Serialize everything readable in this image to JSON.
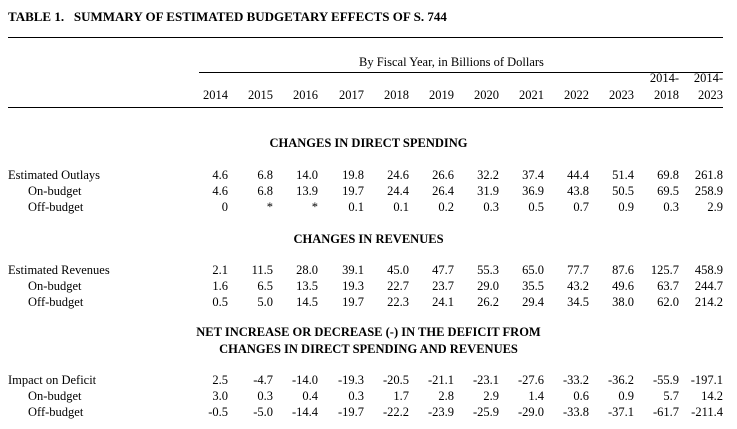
{
  "title": "TABLE 1.   SUMMARY OF ESTIMATED BUDGETARY EFFECTS OF S. 744",
  "subtitle": "By Fiscal Year, in Billions of Dollars",
  "columns": [
    {
      "top": "",
      "bottom": "2014"
    },
    {
      "top": "",
      "bottom": "2015"
    },
    {
      "top": "",
      "bottom": "2016"
    },
    {
      "top": "",
      "bottom": "2017"
    },
    {
      "top": "",
      "bottom": "2018"
    },
    {
      "top": "",
      "bottom": "2019"
    },
    {
      "top": "",
      "bottom": "2020"
    },
    {
      "top": "",
      "bottom": "2021"
    },
    {
      "top": "",
      "bottom": "2022"
    },
    {
      "top": "",
      "bottom": "2023"
    },
    {
      "top": "2014-",
      "bottom": "2018"
    },
    {
      "top": "2014-",
      "bottom": "2023"
    }
  ],
  "sections": [
    {
      "heading": [
        "CHANGES IN DIRECT SPENDING"
      ],
      "rows": [
        {
          "label": "Estimated Outlays",
          "indent": false,
          "values": [
            "4.6",
            "6.8",
            "14.0",
            "19.8",
            "24.6",
            "26.6",
            "32.2",
            "37.4",
            "44.4",
            "51.4",
            "69.8",
            "261.8"
          ]
        },
        {
          "label": "On-budget",
          "indent": true,
          "values": [
            "4.6",
            "6.8",
            "13.9",
            "19.7",
            "24.4",
            "26.4",
            "31.9",
            "36.9",
            "43.8",
            "50.5",
            "69.5",
            "258.9"
          ]
        },
        {
          "label": "Off-budget",
          "indent": true,
          "values": [
            "0",
            "*",
            "*",
            "0.1",
            "0.1",
            "0.2",
            "0.3",
            "0.5",
            "0.7",
            "0.9",
            "0.3",
            "2.9"
          ]
        }
      ]
    },
    {
      "heading": [
        "CHANGES IN REVENUES"
      ],
      "rows": [
        {
          "label": "Estimated Revenues",
          "indent": false,
          "values": [
            "2.1",
            "11.5",
            "28.0",
            "39.1",
            "45.0",
            "47.7",
            "55.3",
            "65.0",
            "77.7",
            "87.6",
            "125.7",
            "458.9"
          ]
        },
        {
          "label": "On-budget",
          "indent": true,
          "values": [
            "1.6",
            "6.5",
            "13.5",
            "19.3",
            "22.7",
            "23.7",
            "29.0",
            "35.5",
            "43.2",
            "49.6",
            "63.7",
            "244.7"
          ]
        },
        {
          "label": "Off-budget",
          "indent": true,
          "values": [
            "0.5",
            "5.0",
            "14.5",
            "19.7",
            "22.3",
            "24.1",
            "26.2",
            "29.4",
            "34.5",
            "38.0",
            "62.0",
            "214.2"
          ]
        }
      ]
    },
    {
      "heading": [
        "NET INCREASE OR DECREASE (-) IN THE DEFICIT FROM",
        "CHANGES IN DIRECT SPENDING AND REVENUES"
      ],
      "rows": [
        {
          "label": "Impact on Deficit",
          "indent": false,
          "values": [
            "2.5",
            "-4.7",
            "-14.0",
            "-19.3",
            "-20.5",
            "-21.1",
            "-23.1",
            "-27.6",
            "-33.2",
            "-36.2",
            "-55.9",
            "-197.1"
          ]
        },
        {
          "label": "On-budget",
          "indent": true,
          "values": [
            "3.0",
            "0.3",
            "0.4",
            "0.3",
            "1.7",
            "2.8",
            "2.9",
            "1.4",
            "0.6",
            "0.9",
            "5.7",
            "14.2"
          ]
        },
        {
          "label": "Off-budget",
          "indent": true,
          "values": [
            "-0.5",
            "-5.0",
            "-14.4",
            "-19.7",
            "-22.2",
            "-23.9",
            "-25.9",
            "-29.0",
            "-33.8",
            "-37.1",
            "-61.7",
            "-211.4"
          ]
        }
      ]
    }
  ]
}
